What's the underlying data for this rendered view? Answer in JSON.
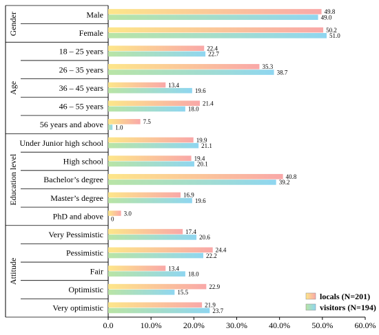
{
  "chart_data": {
    "type": "bar",
    "orientation": "horizontal",
    "groups": [
      {
        "name": "Gender",
        "categories": [
          "Male",
          "Female"
        ]
      },
      {
        "name": "Age",
        "categories": [
          "18 – 25 years",
          "26 – 35 years",
          "36 – 45 years",
          "46 – 55 years",
          "56 years and above"
        ]
      },
      {
        "name": "Education level",
        "categories": [
          "Under Junior high school",
          "High school",
          "Bachelor’s degree",
          "Master’s degree",
          "PhD and above"
        ]
      },
      {
        "name": "Attitude",
        "categories": [
          "Very Pessimistic",
          "Pessimistic",
          "Fair",
          "Optimistic",
          "Very optimistic"
        ]
      }
    ],
    "categories": [
      "Male",
      "Female",
      "18 – 25 years",
      "26 – 35 years",
      "36 – 45 years",
      "46 – 55 years",
      "56 years and above",
      "Under Junior high school",
      "High school",
      "Bachelor’s degree",
      "Master’s degree",
      "PhD and above",
      "Very Pessimistic",
      "Pessimistic",
      "Fair",
      "Optimistic",
      "Very optimistic"
    ],
    "series": [
      {
        "name": "locals (N=201)",
        "values": [
          49.8,
          50.2,
          22.4,
          35.3,
          13.4,
          21.4,
          7.5,
          19.9,
          19.4,
          40.8,
          16.9,
          3.0,
          17.4,
          24.4,
          13.4,
          22.9,
          21.9
        ],
        "labels": [
          "49.8",
          "50.2",
          "22.4",
          "35.3",
          "13.4",
          "21.4",
          "7.5",
          "19.9",
          "19.4",
          "40.8",
          "16.9",
          "3.0",
          "17.4",
          "24.4",
          "13.4",
          "22.9",
          "21.9"
        ],
        "colors": [
          "#fde68a",
          "#f9a8a8"
        ]
      },
      {
        "name": "visitors (N=194)",
        "values": [
          49.0,
          51.0,
          22.7,
          38.7,
          19.6,
          18.0,
          1.0,
          21.1,
          20.1,
          39.2,
          19.6,
          0,
          20.6,
          22.2,
          18.0,
          15.5,
          23.7
        ],
        "labels": [
          "49.0",
          "51.0",
          "22.7",
          "38.7",
          "19.6",
          "18.0",
          "1.0",
          "21.1",
          "20.1",
          "39.2",
          "19.6",
          "0",
          "20.6",
          "22.2",
          "18.0",
          "15.5",
          "23.7"
        ],
        "colors": [
          "#b9e4a5",
          "#8fd6f0"
        ]
      }
    ],
    "xlim": [
      0,
      60
    ],
    "xticks": [
      "0.0",
      "10.0%",
      "20.0%",
      "30.0%",
      "40.0%",
      "50.0%",
      "60.0%"
    ],
    "xlabel": "",
    "ylabel": "",
    "title": "",
    "grid": false,
    "legend": "bottom-right"
  }
}
